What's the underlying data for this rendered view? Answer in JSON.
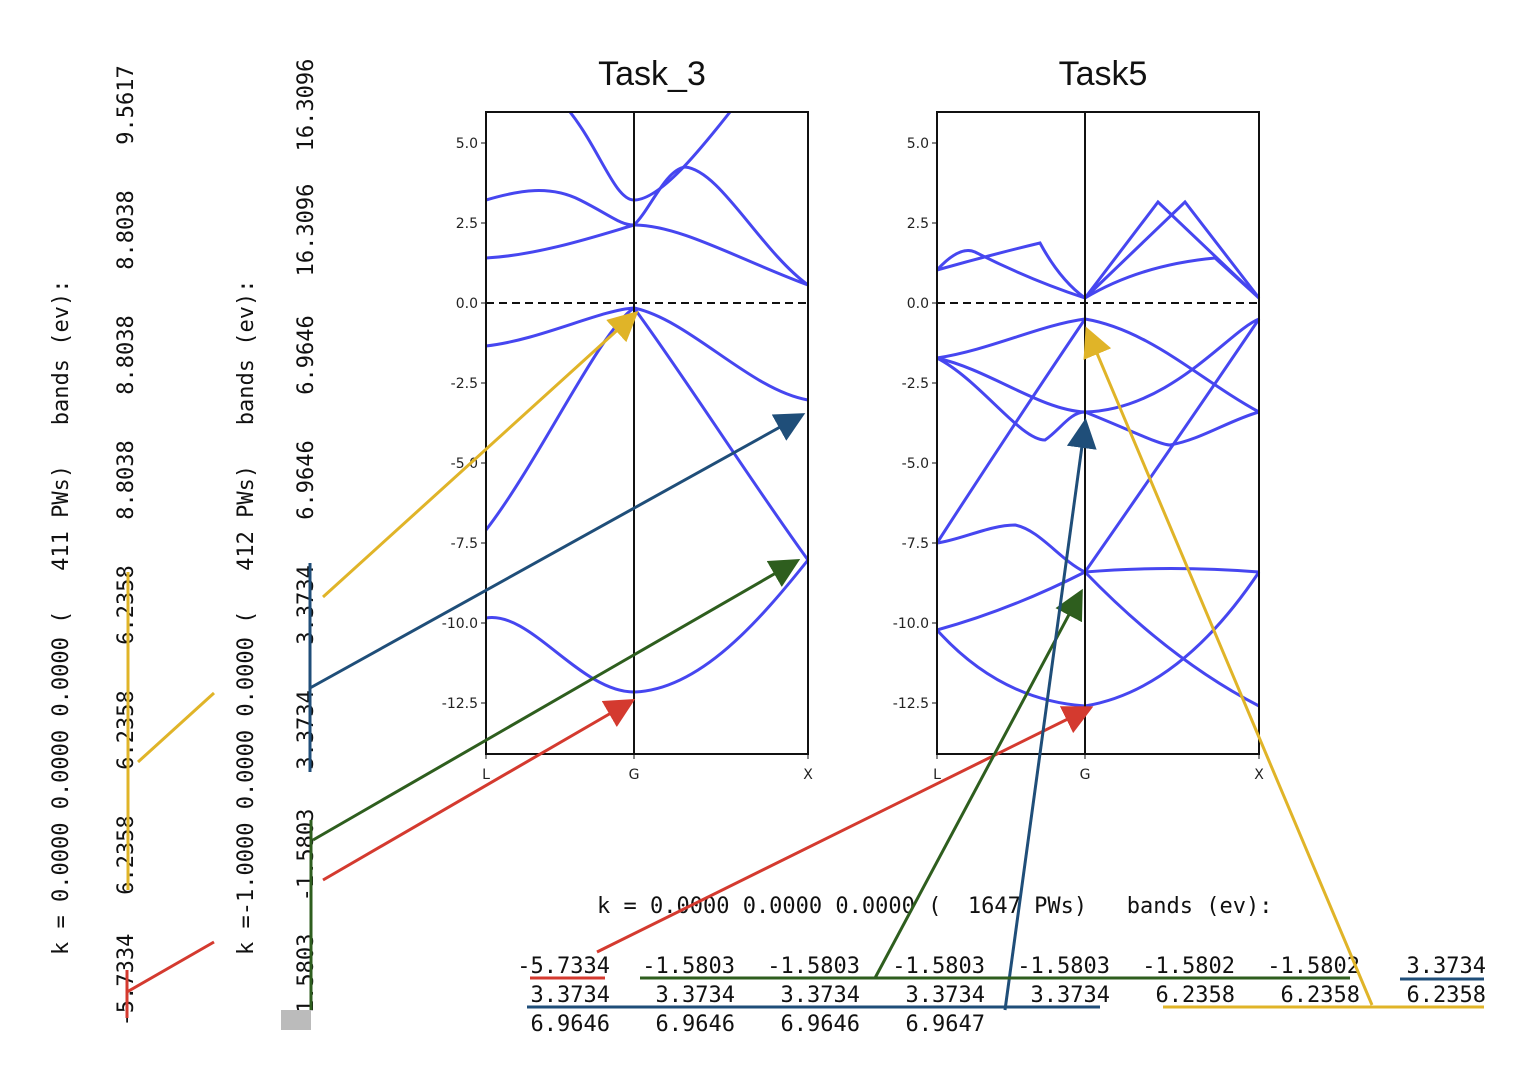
{
  "plots": [
    {
      "title": "Task_3",
      "yticks": [
        "5.0",
        "2.5",
        "0.0",
        "-2.5",
        "-5.0",
        "-7.5",
        "-10.0",
        "-12.5"
      ],
      "xticks": [
        "L",
        "G",
        "X"
      ]
    },
    {
      "title": "Task5",
      "yticks": [
        "5.0",
        "2.5",
        "0.0",
        "-2.5",
        "-5.0",
        "-7.5",
        "-10.0",
        "-12.5"
      ],
      "xticks": [
        "L",
        "G",
        "X"
      ]
    }
  ],
  "left_output": [
    {
      "header": "k = 0.0000 0.0000 0.0000 (   411 PWs)   bands (ev):",
      "bands": [
        -5.7334,
        6.2358,
        6.2358,
        6.2358,
        8.8038,
        8.8038,
        8.8038,
        9.5617
      ]
    },
    {
      "header": "k =-1.0000 0.0000 0.0000 (   412 PWs)   bands (ev):",
      "bands": [
        -1.5803,
        -1.5803,
        3.3734,
        3.3734,
        6.9646,
        6.9646,
        16.3096,
        16.3096
      ]
    }
  ],
  "bottom_output": {
    "header": "k = 0.0000 0.0000 0.0000 (  1647 PWs)   bands (ev):",
    "rows": [
      [
        -5.7334,
        -1.5803,
        -1.5803,
        -1.5803,
        -1.5803,
        -1.5802,
        -1.5802,
        3.3734
      ],
      [
        3.3734,
        3.3734,
        3.3734,
        3.3734,
        3.3734,
        6.2358,
        6.2358,
        6.2358
      ],
      [
        6.9646,
        6.9646,
        6.9646,
        6.9647
      ]
    ]
  }
}
